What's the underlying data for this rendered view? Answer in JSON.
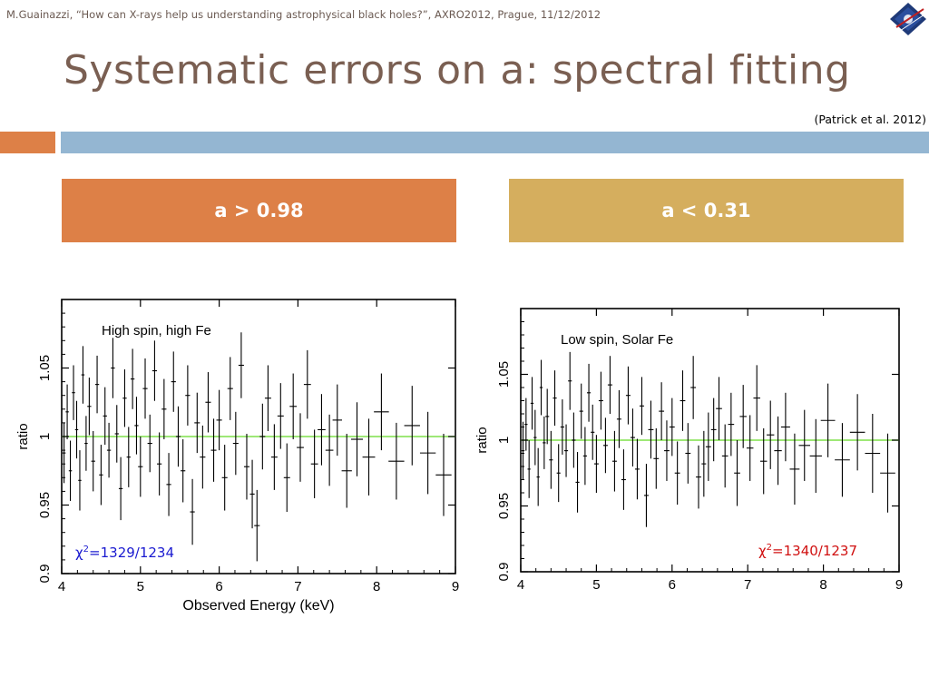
{
  "header": {
    "byline": "M.Guainazzi, “How can X-rays help us understanding astrophysical black holes?”, AXRO2012, Prague, 11/12/2012"
  },
  "slide": {
    "title": "Systematic errors on a: spectral fitting",
    "citation": "(Patrick et al. 2012)",
    "box_left": "a > 0.98",
    "box_right": "a < 0.31"
  },
  "colors": {
    "orange": "#dd8047",
    "blue_bar": "#94b6d2",
    "gold": "#d5ae5e",
    "model_line": "#7fe04a",
    "chi_left": "#1a1ad0",
    "chi_right": "#d01010"
  },
  "chart_data": [
    {
      "type": "scatter",
      "title": "High spin, high Fe",
      "xlabel": "Observed Energy (keV)",
      "ylabel": "ratio",
      "xlim": [
        4,
        9
      ],
      "ylim": [
        0.9,
        1.1
      ],
      "xticks": [
        "4",
        "5",
        "6",
        "7",
        "8",
        "9"
      ],
      "yticks": [
        "0.9",
        "0.95",
        "1",
        "1.05"
      ],
      "reference_line": 1,
      "annotation": {
        "chi": "χ",
        "sup": "2",
        "rest": "=1329/1234"
      },
      "points": [
        [
          4.03,
          0.988,
          0.022
        ],
        [
          4.07,
          1.018,
          0.02
        ],
        [
          4.11,
          0.975,
          0.022
        ],
        [
          4.15,
          1.032,
          0.02
        ],
        [
          4.19,
          1.005,
          0.021
        ],
        [
          4.23,
          0.968,
          0.022
        ],
        [
          4.27,
          1.045,
          0.021
        ],
        [
          4.31,
          0.995,
          0.02
        ],
        [
          4.35,
          1.022,
          0.021
        ],
        [
          4.4,
          0.982,
          0.022
        ],
        [
          4.45,
          1.038,
          0.021
        ],
        [
          4.5,
          0.972,
          0.022
        ],
        [
          4.55,
          1.015,
          0.021
        ],
        [
          4.6,
          0.99,
          0.02
        ],
        [
          4.65,
          1.05,
          0.022
        ],
        [
          4.7,
          1.002,
          0.021
        ],
        [
          4.75,
          0.962,
          0.023
        ],
        [
          4.8,
          1.028,
          0.021
        ],
        [
          4.85,
          0.985,
          0.022
        ],
        [
          4.9,
          1.042,
          0.022
        ],
        [
          4.95,
          1.008,
          0.021
        ],
        [
          5.0,
          0.978,
          0.022
        ],
        [
          5.06,
          1.035,
          0.022
        ],
        [
          5.12,
          0.995,
          0.021
        ],
        [
          5.18,
          1.048,
          0.022
        ],
        [
          5.24,
          0.98,
          0.023
        ],
        [
          5.3,
          1.02,
          0.022
        ],
        [
          5.36,
          0.965,
          0.023
        ],
        [
          5.42,
          1.04,
          0.022
        ],
        [
          5.48,
          1.0,
          0.022
        ],
        [
          5.54,
          0.975,
          0.023
        ],
        [
          5.6,
          1.03,
          0.022
        ],
        [
          5.66,
          0.945,
          0.024
        ],
        [
          5.72,
          1.01,
          0.022
        ],
        [
          5.79,
          0.985,
          0.023
        ],
        [
          5.86,
          1.025,
          0.022
        ],
        [
          5.93,
          0.99,
          0.023
        ],
        [
          6.0,
          1.012,
          0.022
        ],
        [
          6.07,
          0.97,
          0.024
        ],
        [
          6.14,
          1.035,
          0.023
        ],
        [
          6.21,
          0.995,
          0.023
        ],
        [
          6.28,
          1.052,
          0.024
        ],
        [
          6.35,
          0.978,
          0.024
        ],
        [
          6.42,
          0.958,
          0.025
        ],
        [
          6.48,
          0.935,
          0.026
        ],
        [
          6.55,
          1.0,
          0.024
        ],
        [
          6.62,
          1.028,
          0.024
        ],
        [
          6.7,
          0.985,
          0.024
        ],
        [
          6.78,
          1.015,
          0.024
        ],
        [
          6.86,
          0.97,
          0.025
        ],
        [
          6.94,
          1.022,
          0.024
        ],
        [
          7.03,
          0.992,
          0.025
        ],
        [
          7.12,
          1.038,
          0.025
        ],
        [
          7.21,
          0.98,
          0.025
        ],
        [
          7.3,
          1.005,
          0.026
        ],
        [
          7.4,
          0.99,
          0.026
        ],
        [
          7.5,
          1.012,
          0.026
        ],
        [
          7.62,
          0.975,
          0.027
        ],
        [
          7.75,
          0.998,
          0.027
        ],
        [
          7.9,
          0.985,
          0.028
        ],
        [
          8.06,
          1.018,
          0.028
        ],
        [
          8.25,
          0.982,
          0.028
        ],
        [
          8.45,
          1.008,
          0.029
        ],
        [
          8.65,
          0.988,
          0.03
        ],
        [
          8.85,
          0.972,
          0.03
        ]
      ]
    },
    {
      "type": "scatter",
      "title": "Low spin, Solar Fe",
      "xlabel": "",
      "ylabel": "ratio",
      "xlim": [
        4,
        9
      ],
      "ylim": [
        0.9,
        1.1
      ],
      "xticks": [
        "4",
        "5",
        "6",
        "7",
        "8",
        "9"
      ],
      "yticks": [
        "0.9",
        "0.95",
        "1",
        "1.05"
      ],
      "reference_line": 1,
      "annotation": {
        "chi": "χ",
        "sup": "2",
        "rest": "=1340/1237"
      },
      "points": [
        [
          4.03,
          0.992,
          0.022
        ],
        [
          4.07,
          1.012,
          0.02
        ],
        [
          4.11,
          0.978,
          0.022
        ],
        [
          4.15,
          1.028,
          0.02
        ],
        [
          4.19,
          1.002,
          0.021
        ],
        [
          4.23,
          0.972,
          0.022
        ],
        [
          4.27,
          1.04,
          0.021
        ],
        [
          4.31,
          0.998,
          0.02
        ],
        [
          4.35,
          1.018,
          0.021
        ],
        [
          4.4,
          0.985,
          0.022
        ],
        [
          4.45,
          1.032,
          0.021
        ],
        [
          4.5,
          0.975,
          0.022
        ],
        [
          4.55,
          1.01,
          0.021
        ],
        [
          4.6,
          0.992,
          0.02
        ],
        [
          4.65,
          1.045,
          0.022
        ],
        [
          4.7,
          1.0,
          0.021
        ],
        [
          4.75,
          0.968,
          0.023
        ],
        [
          4.8,
          1.022,
          0.021
        ],
        [
          4.85,
          0.988,
          0.022
        ],
        [
          4.9,
          1.036,
          0.022
        ],
        [
          4.95,
          1.006,
          0.021
        ],
        [
          5.0,
          0.982,
          0.022
        ],
        [
          5.06,
          1.03,
          0.022
        ],
        [
          5.12,
          0.996,
          0.021
        ],
        [
          5.18,
          1.042,
          0.022
        ],
        [
          5.24,
          0.984,
          0.023
        ],
        [
          5.3,
          1.016,
          0.022
        ],
        [
          5.36,
          0.97,
          0.023
        ],
        [
          5.42,
          1.034,
          0.022
        ],
        [
          5.48,
          1.002,
          0.022
        ],
        [
          5.54,
          0.978,
          0.023
        ],
        [
          5.6,
          1.026,
          0.022
        ],
        [
          5.66,
          0.958,
          0.024
        ],
        [
          5.72,
          1.008,
          0.022
        ],
        [
          5.79,
          0.986,
          0.023
        ],
        [
          5.86,
          1.022,
          0.022
        ],
        [
          5.93,
          0.992,
          0.023
        ],
        [
          6.0,
          1.01,
          0.022
        ],
        [
          6.07,
          0.975,
          0.024
        ],
        [
          6.14,
          1.03,
          0.023
        ],
        [
          6.21,
          0.99,
          0.023
        ],
        [
          6.28,
          1.04,
          0.024
        ],
        [
          6.35,
          0.972,
          0.024
        ],
        [
          6.42,
          0.982,
          0.025
        ],
        [
          6.48,
          0.995,
          0.026
        ],
        [
          6.55,
          1.008,
          0.024
        ],
        [
          6.62,
          1.024,
          0.024
        ],
        [
          6.7,
          0.988,
          0.024
        ],
        [
          6.78,
          1.012,
          0.024
        ],
        [
          6.86,
          0.975,
          0.025
        ],
        [
          6.94,
          1.018,
          0.024
        ],
        [
          7.03,
          0.994,
          0.025
        ],
        [
          7.12,
          1.032,
          0.025
        ],
        [
          7.21,
          0.984,
          0.025
        ],
        [
          7.3,
          1.004,
          0.026
        ],
        [
          7.4,
          0.992,
          0.026
        ],
        [
          7.5,
          1.01,
          0.026
        ],
        [
          7.62,
          0.978,
          0.027
        ],
        [
          7.75,
          0.996,
          0.027
        ],
        [
          7.9,
          0.988,
          0.028
        ],
        [
          8.06,
          1.015,
          0.028
        ],
        [
          8.25,
          0.985,
          0.028
        ],
        [
          8.45,
          1.006,
          0.029
        ],
        [
          8.65,
          0.99,
          0.03
        ],
        [
          8.85,
          0.975,
          0.03
        ]
      ]
    }
  ]
}
